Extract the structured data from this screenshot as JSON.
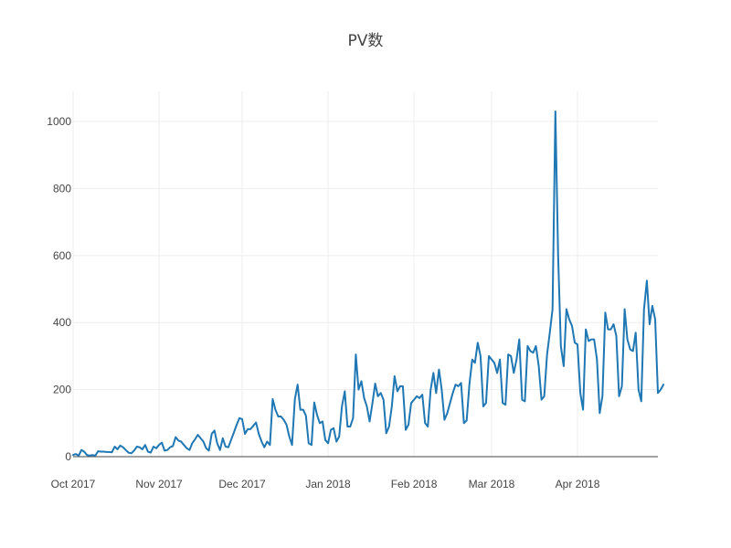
{
  "chart_data": {
    "type": "line",
    "title": "PV数",
    "xlabel": "",
    "ylabel": "",
    "line_color": "#1f77b4",
    "grid": true,
    "legend": "none",
    "x_range": [
      "2017-10-01",
      "2018-04-30"
    ],
    "ylim": [
      0,
      1090
    ],
    "x_ticks": [
      {
        "date": "2017-10-01",
        "label": "Oct 2017"
      },
      {
        "date": "2017-11-01",
        "label": "Nov 2017"
      },
      {
        "date": "2017-12-01",
        "label": "Dec 2017"
      },
      {
        "date": "2018-01-01",
        "label": "Jan 2018"
      },
      {
        "date": "2018-02-01",
        "label": "Feb 2018"
      },
      {
        "date": "2018-03-01",
        "label": "Mar 2018"
      },
      {
        "date": "2018-04-01",
        "label": "Apr 2018"
      }
    ],
    "y_ticks": [
      {
        "value": 0,
        "label": "0"
      },
      {
        "value": 200,
        "label": "200"
      },
      {
        "value": 400,
        "label": "400"
      },
      {
        "value": 600,
        "label": "600"
      },
      {
        "value": 800,
        "label": "800"
      },
      {
        "value": 1000,
        "label": "1000"
      }
    ],
    "x_start": "2017-10-01",
    "x_step_days": 1,
    "y": [
      5,
      8,
      3,
      20,
      15,
      5,
      3,
      5,
      3,
      16,
      15,
      15,
      14,
      14,
      13,
      30,
      22,
      33,
      28,
      20,
      12,
      10,
      18,
      30,
      28,
      22,
      35,
      15,
      12,
      30,
      25,
      35,
      42,
      18,
      20,
      28,
      32,
      58,
      48,
      45,
      35,
      25,
      20,
      40,
      52,
      65,
      55,
      45,
      25,
      18,
      68,
      78,
      40,
      20,
      55,
      30,
      28,
      50,
      72,
      95,
      115,
      112,
      68,
      82,
      82,
      92,
      102,
      68,
      45,
      28,
      45,
      35,
      172,
      140,
      120,
      120,
      110,
      95,
      60,
      35,
      172,
      215,
      140,
      140,
      122,
      40,
      35,
      162,
      125,
      100,
      105,
      50,
      40,
      80,
      85,
      45,
      60,
      150,
      195,
      90,
      90,
      115,
      305,
      200,
      225,
      175,
      150,
      105,
      160,
      218,
      180,
      190,
      170,
      70,
      90,
      150,
      240,
      195,
      210,
      210,
      80,
      95,
      160,
      170,
      180,
      175,
      185,
      100,
      90,
      200,
      250,
      190,
      260,
      200,
      110,
      130,
      160,
      190,
      215,
      210,
      220,
      100,
      108,
      215,
      290,
      280,
      340,
      300,
      150,
      160,
      300,
      290,
      280,
      250,
      290,
      160,
      155,
      305,
      300,
      250,
      290,
      350,
      170,
      165,
      330,
      315,
      310,
      330,
      270,
      170,
      180,
      305,
      370,
      440,
      1030,
      600,
      330,
      270,
      440,
      410,
      390,
      340,
      335,
      190,
      140,
      380,
      345,
      350,
      350,
      290,
      130,
      180,
      430,
      380,
      380,
      395,
      360,
      180,
      210,
      440,
      350,
      320,
      315,
      370,
      200,
      165,
      440,
      525,
      395,
      450,
      410,
      190,
      200,
      215
    ]
  }
}
